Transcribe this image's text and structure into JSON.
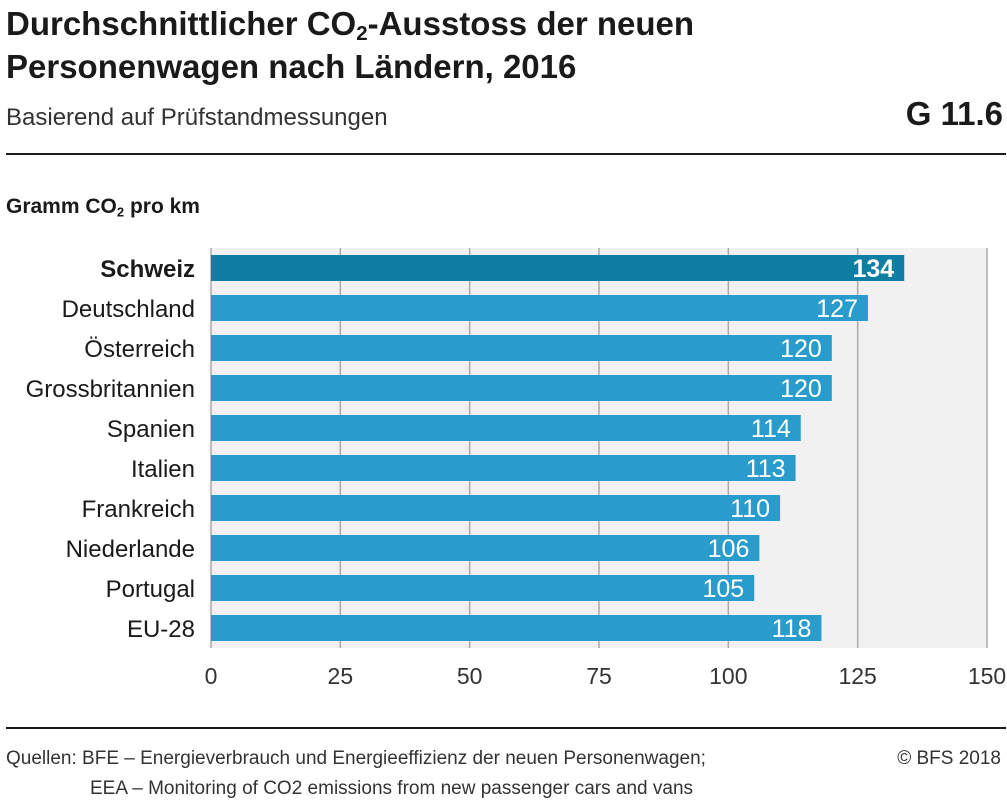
{
  "header": {
    "title_part1": "Durchschnittlicher CO",
    "title_sub": "2",
    "title_part2": "-Ausstoss der neuen Personenwagen nach Ländern, 2016",
    "subtitle": "Basierend auf Prüfstandmessungen",
    "code": "G 11.6"
  },
  "unit": {
    "part1": "Gramm CO",
    "sub": "2",
    "part2": " pro km"
  },
  "chart_data": {
    "type": "bar",
    "orientation": "horizontal",
    "categories": [
      "Schweiz",
      "Deutschland",
      "Österreich",
      "Grossbritannien",
      "Spanien",
      "Italien",
      "Frankreich",
      "Niederlande",
      "Portugal",
      "EU-28"
    ],
    "values": [
      134,
      127,
      120,
      120,
      114,
      113,
      110,
      106,
      105,
      118
    ],
    "highlight_category": "Schweiz",
    "xlim": [
      0,
      150
    ],
    "xticks": [
      0,
      25,
      50,
      75,
      100,
      125,
      150
    ],
    "grid": true,
    "colors": {
      "bar": "#2a9ccc",
      "highlight": "#0e7ea3",
      "plot_bg": "#f1f1f1",
      "grid": "#aaaaaa"
    }
  },
  "footer": {
    "sources_line1": "Quellen: BFE – Energieverbrauch und Energieeffizienz der neuen Personenwagen;",
    "sources_line2": "EEA – Monitoring of CO2 emissions from new passenger cars and vans",
    "copyright": "© BFS 2018"
  }
}
